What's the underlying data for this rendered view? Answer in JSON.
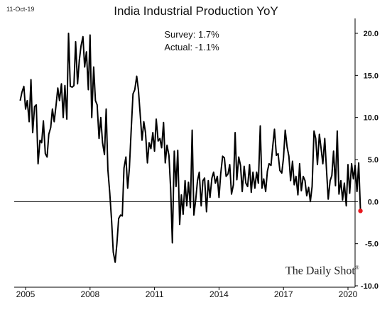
{
  "date_stamp": "11-Oct-19",
  "annotations": {
    "survey": "Survey: 1.7%",
    "actual": "Actual:  -1.1%"
  },
  "watermark": "The Daily Shot",
  "watermark_mark": "®",
  "colors": {
    "line": "#000000",
    "latest_point": "#e8171d",
    "zero_line": "#000000"
  },
  "chart_data": {
    "type": "line",
    "title": "India Industrial Production YoY",
    "xlabel": "",
    "ylabel": "",
    "xlim": [
      2004.7,
      2019.9
    ],
    "ylim": [
      -10,
      21
    ],
    "y_ticks": [
      20.0,
      15.0,
      10.0,
      5.0,
      0.0,
      -5.0,
      -10.0
    ],
    "y_tick_labels": [
      "20.0",
      "15.0",
      "10.0",
      "5.0",
      "0.0",
      "-5.0",
      "-10.0"
    ],
    "x_ticks": [
      2005,
      2008,
      2011,
      2014,
      2017,
      2020
    ],
    "x_tick_labels": [
      "2005",
      "2008",
      "2011",
      "2014",
      "2017",
      "2020"
    ],
    "y_axis_side": "right",
    "reference_line": 0,
    "grid": false,
    "legend": "none",
    "series": [
      {
        "points": [
          [
            2004.75,
            12
          ],
          [
            2004.83,
            13
          ],
          [
            2004.92,
            13.7
          ],
          [
            2005.0,
            11
          ],
          [
            2005.08,
            12
          ],
          [
            2005.17,
            9.5
          ],
          [
            2005.25,
            14.5
          ],
          [
            2005.33,
            8.2
          ],
          [
            2005.42,
            11.3
          ],
          [
            2005.5,
            11.5
          ],
          [
            2005.58,
            4.5
          ],
          [
            2005.67,
            7.3
          ],
          [
            2005.75,
            7
          ],
          [
            2005.83,
            9.6
          ],
          [
            2005.92,
            5.7
          ],
          [
            2006.0,
            5.3
          ],
          [
            2006.08,
            8
          ],
          [
            2006.17,
            8.8
          ],
          [
            2006.25,
            11
          ],
          [
            2006.33,
            9.5
          ],
          [
            2006.42,
            11.5
          ],
          [
            2006.5,
            13.5
          ],
          [
            2006.58,
            12
          ],
          [
            2006.67,
            14
          ],
          [
            2006.75,
            10
          ],
          [
            2006.83,
            13.8
          ],
          [
            2006.92,
            9.8
          ],
          [
            2007.0,
            20
          ],
          [
            2007.08,
            13.7
          ],
          [
            2007.17,
            13.6
          ],
          [
            2007.25,
            13.8
          ],
          [
            2007.33,
            19
          ],
          [
            2007.42,
            14
          ],
          [
            2007.5,
            16.8
          ],
          [
            2007.58,
            18.5
          ],
          [
            2007.67,
            19.6
          ],
          [
            2007.75,
            16
          ],
          [
            2007.83,
            17.8
          ],
          [
            2007.92,
            13.3
          ],
          [
            2008.0,
            19.8
          ],
          [
            2008.08,
            10
          ],
          [
            2008.17,
            16
          ],
          [
            2008.25,
            12
          ],
          [
            2008.33,
            11.5
          ],
          [
            2008.42,
            7.5
          ],
          [
            2008.5,
            10
          ],
          [
            2008.58,
            7
          ],
          [
            2008.67,
            5.6
          ],
          [
            2008.75,
            11
          ],
          [
            2008.83,
            3.8
          ],
          [
            2008.92,
            1
          ],
          [
            2009.0,
            -2.2
          ],
          [
            2009.08,
            -6
          ],
          [
            2009.17,
            -7.2
          ],
          [
            2009.25,
            -5
          ],
          [
            2009.33,
            -2
          ],
          [
            2009.42,
            -1.6
          ],
          [
            2009.5,
            -1.7
          ],
          [
            2009.58,
            4
          ],
          [
            2009.67,
            5.3
          ],
          [
            2009.75,
            1.6
          ],
          [
            2009.83,
            4
          ],
          [
            2009.92,
            8.8
          ],
          [
            2010.0,
            12.8
          ],
          [
            2010.08,
            13.3
          ],
          [
            2010.17,
            14.9
          ],
          [
            2010.25,
            13.3
          ],
          [
            2010.33,
            10.5
          ],
          [
            2010.42,
            7.3
          ],
          [
            2010.5,
            9.5
          ],
          [
            2010.58,
            8.2
          ],
          [
            2010.67,
            4.6
          ],
          [
            2010.75,
            7
          ],
          [
            2010.83,
            6.3
          ],
          [
            2010.92,
            8.2
          ],
          [
            2011.0,
            6
          ],
          [
            2011.08,
            9.8
          ],
          [
            2011.17,
            7.2
          ],
          [
            2011.25,
            7.5
          ],
          [
            2011.33,
            6.4
          ],
          [
            2011.42,
            9.4
          ],
          [
            2011.5,
            4.6
          ],
          [
            2011.58,
            6.7
          ],
          [
            2011.67,
            5.5
          ],
          [
            2011.75,
            1.5
          ],
          [
            2011.83,
            -4.9
          ],
          [
            2011.92,
            6
          ],
          [
            2012.0,
            1.8
          ],
          [
            2012.08,
            6.1
          ],
          [
            2012.17,
            -2.7
          ],
          [
            2012.25,
            0.8
          ],
          [
            2012.33,
            -1.5
          ],
          [
            2012.42,
            2.5
          ],
          [
            2012.5,
            -0.5
          ],
          [
            2012.58,
            2.3
          ],
          [
            2012.67,
            -0.7
          ],
          [
            2012.75,
            8.5
          ],
          [
            2012.83,
            -1.6
          ],
          [
            2012.92,
            0.3
          ],
          [
            2013.0,
            2.5
          ],
          [
            2013.08,
            3.5
          ],
          [
            2013.17,
            -0.5
          ],
          [
            2013.25,
            2.5
          ],
          [
            2013.33,
            2.8
          ],
          [
            2013.42,
            -1.2
          ],
          [
            2013.5,
            2.5
          ],
          [
            2013.58,
            0.5
          ],
          [
            2013.67,
            2.8
          ],
          [
            2013.75,
            3.5
          ],
          [
            2013.83,
            2.2
          ],
          [
            2013.92,
            3
          ],
          [
            2014.0,
            0.5
          ],
          [
            2014.08,
            3.3
          ],
          [
            2014.17,
            5.4
          ],
          [
            2014.25,
            5.2
          ],
          [
            2014.33,
            3
          ],
          [
            2014.42,
            3.3
          ],
          [
            2014.5,
            4.4
          ],
          [
            2014.58,
            0.9
          ],
          [
            2014.67,
            2
          ],
          [
            2014.75,
            8.2
          ],
          [
            2014.83,
            2.6
          ],
          [
            2014.92,
            5.3
          ],
          [
            2015.0,
            4.3
          ],
          [
            2015.08,
            1.2
          ],
          [
            2015.17,
            4.2
          ],
          [
            2015.25,
            2.2
          ],
          [
            2015.33,
            1.8
          ],
          [
            2015.42,
            4.4
          ],
          [
            2015.5,
            1.1
          ],
          [
            2015.58,
            3.5
          ],
          [
            2015.67,
            1.6
          ],
          [
            2015.75,
            3.5
          ],
          [
            2015.83,
            2.2
          ],
          [
            2015.92,
            9
          ],
          [
            2016.0,
            1.6
          ],
          [
            2016.08,
            2.7
          ],
          [
            2016.17,
            1.2
          ],
          [
            2016.25,
            3.6
          ],
          [
            2016.33,
            4.5
          ],
          [
            2016.42,
            4.3
          ],
          [
            2016.5,
            6.6
          ],
          [
            2016.58,
            8.6
          ],
          [
            2016.67,
            5.5
          ],
          [
            2016.75,
            5.7
          ],
          [
            2016.83,
            3.7
          ],
          [
            2016.92,
            3.4
          ],
          [
            2017.0,
            5.2
          ],
          [
            2017.08,
            8.5
          ],
          [
            2017.17,
            6.5
          ],
          [
            2017.25,
            5.4
          ],
          [
            2017.33,
            2.5
          ],
          [
            2017.42,
            4.8
          ],
          [
            2017.5,
            2
          ],
          [
            2017.58,
            3
          ],
          [
            2017.67,
            0.8
          ],
          [
            2017.75,
            4.5
          ],
          [
            2017.83,
            1.3
          ],
          [
            2017.92,
            3
          ],
          [
            2018.0,
            2.5
          ],
          [
            2018.08,
            0.7
          ],
          [
            2018.17,
            1.7
          ],
          [
            2018.25,
            0
          ],
          [
            2018.33,
            1.8
          ],
          [
            2018.42,
            8.4
          ],
          [
            2018.5,
            7.5
          ],
          [
            2018.58,
            4.4
          ],
          [
            2018.67,
            8
          ],
          [
            2018.75,
            6.3
          ],
          [
            2018.83,
            4.5
          ],
          [
            2018.92,
            7.5
          ],
          [
            2019.0,
            3.9
          ],
          [
            2019.08,
            0.3
          ],
          [
            2019.17,
            2.5
          ],
          [
            2019.25,
            3.1
          ],
          [
            2019.33,
            6
          ],
          [
            2019.42,
            1.9
          ],
          [
            2019.5,
            8.4
          ],
          [
            2019.58,
            0.9
          ],
          [
            2019.67,
            2.5
          ],
          [
            2019.75,
            0.2
          ],
          [
            2019.83,
            2.2
          ],
          [
            2019.92,
            -0.5
          ],
          [
            2020.0,
            4.4
          ],
          [
            2020.08,
            1
          ],
          [
            2020.17,
            4.5
          ],
          [
            2020.25,
            2.7
          ],
          [
            2020.33,
            4.3
          ],
          [
            2020.42,
            1.2
          ],
          [
            2020.5,
            4.6
          ],
          [
            2020.58,
            -1.1
          ]
        ]
      }
    ],
    "latest_point": {
      "x": 2020.58,
      "y": -1.1
    }
  }
}
